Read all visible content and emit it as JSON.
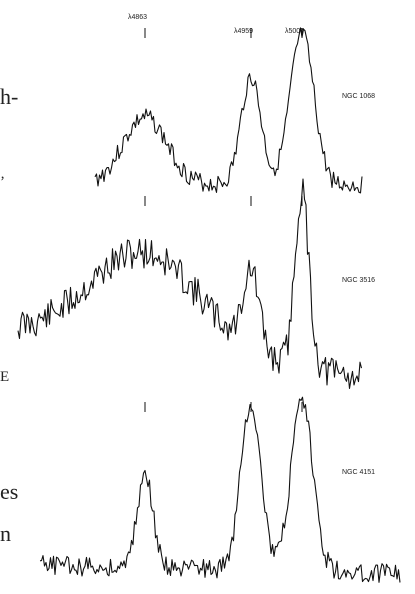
{
  "chart_data": {
    "type": "line",
    "title": "",
    "xlabel": "",
    "ylabel": "",
    "line_markers": [
      "λ4863",
      "λ4959",
      "λ5007"
    ],
    "panels": [
      {
        "name": "NGC 1068",
        "peaks": [
          {
            "line": "λ4863",
            "height": 0.45,
            "width": 22
          },
          {
            "line": "λ4959",
            "height": 0.72,
            "width": 10
          },
          {
            "line": "λ5007",
            "height": 1.0,
            "width": 12
          }
        ],
        "continuum_left": 0.0,
        "continuum_right": 0.0
      },
      {
        "name": "NGC 3516",
        "peaks": [
          {
            "line": "λ4863",
            "height": 0.55,
            "width": 55
          },
          {
            "line": "λ4959",
            "height": 0.45,
            "width": 8
          },
          {
            "line": "λ5007",
            "height": 1.0,
            "width": 7
          }
        ],
        "continuum_left": 0.3,
        "continuum_right": 0.05
      },
      {
        "name": "NGC 4151",
        "peaks": [
          {
            "line": "λ4863",
            "height": 0.55,
            "width": 8
          },
          {
            "line": "λ4959",
            "height": 1.0,
            "width": 10
          },
          {
            "line": "λ5007",
            "height": 1.0,
            "width": 11
          }
        ],
        "continuum_left": 0.1,
        "continuum_right": 0.05
      }
    ],
    "grid": false,
    "legend": "none"
  },
  "margin_text": [
    "h-",
    "’",
    "E",
    "es",
    "n"
  ]
}
